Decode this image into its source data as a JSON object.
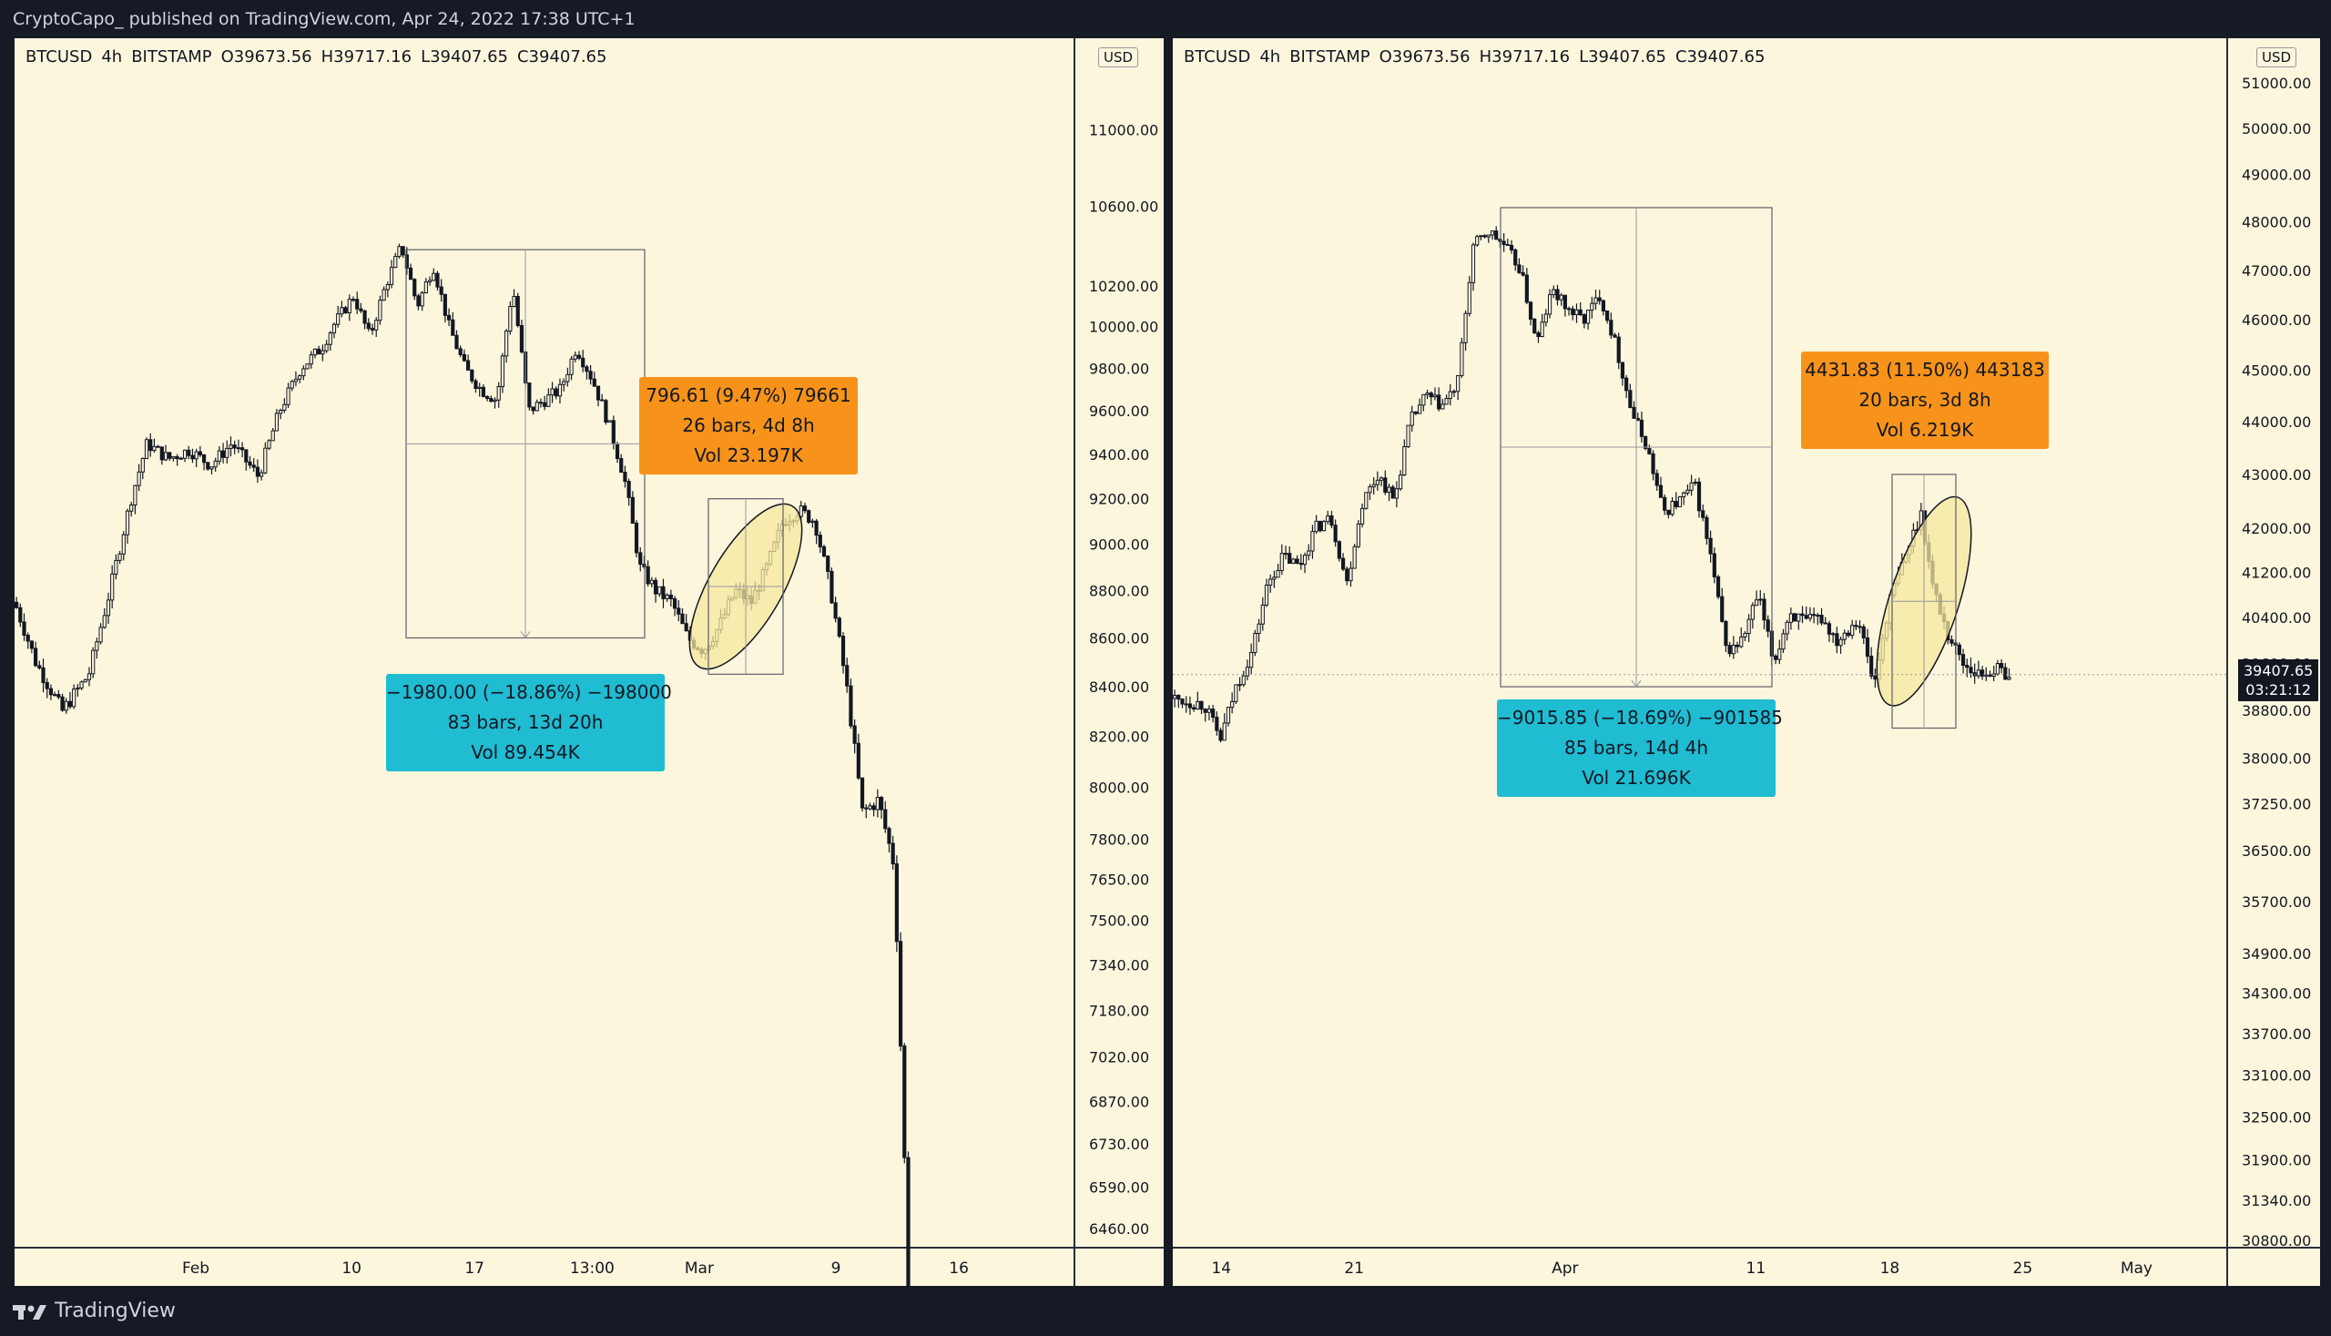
{
  "header": {
    "publisher_line": "CryptoCapo_  published on TradingView.com, Apr 24, 2022 17:38 UTC+1"
  },
  "footer": {
    "brand": "TradingView"
  },
  "colors": {
    "background": "#fcf6dd",
    "frame": "#161a25",
    "candle": "#131722",
    "orange_label": "#f7931a",
    "cyan_label": "#1fbcd2",
    "ellipse_fill": "#f5e79e"
  },
  "left_chart": {
    "symbol": "BTCUSD",
    "interval": "4h",
    "exchange": "BITSTAMP",
    "open": "O39673.56",
    "high": "H39717.16",
    "low": "L39407.65",
    "close": "C39407.65",
    "currency": "USD",
    "measure_orange": {
      "line1": "796.61 (9.47%) 79661",
      "line2": "26 bars, 4d 8h",
      "line3": "Vol 23.197K"
    },
    "measure_cyan": {
      "line1": "−1980.00 (−18.86%) −198000",
      "line2": "83 bars, 13d 20h",
      "line3": "Vol 89.454K"
    }
  },
  "right_chart": {
    "symbol": "BTCUSD",
    "interval": "4h",
    "exchange": "BITSTAMP",
    "open": "O39673.56",
    "high": "H39717.16",
    "low": "L39407.65",
    "close": "C39407.65",
    "currency": "USD",
    "last_price": "39407.65",
    "countdown": "03:21:12",
    "measure_orange": {
      "line1": "4431.83 (11.50%) 443183",
      "line2": "20 bars, 3d 8h",
      "line3": "Vol 6.219K"
    },
    "measure_cyan": {
      "line1": "−9015.85 (−18.69%) −901585",
      "line2": "85 bars, 14d 4h",
      "line3": "Vol 21.696K"
    }
  },
  "chart_data": [
    {
      "type": "candlestick",
      "series": [
        {
          "name": "BTCUSD"
        }
      ],
      "scale": "log",
      "ylim": [
        6400,
        11500
      ],
      "y_ticks": [
        "11000.00",
        "10600.00",
        "10200.00",
        "10000.00",
        "9800.00",
        "9600.00",
        "9400.00",
        "9200.00",
        "9000.00",
        "8800.00",
        "8600.00",
        "8400.00",
        "8200.00",
        "8000.00",
        "7800.00",
        "7650.00",
        "7500.00",
        "7340.00",
        "7180.00",
        "7020.00",
        "6870.00",
        "6730.00",
        "6590.00",
        "6460.00"
      ],
      "y_tick_values": [
        11000,
        10600,
        10200,
        10000,
        9800,
        9600,
        9400,
        9200,
        9000,
        8800,
        8600,
        8400,
        8200,
        8000,
        7800,
        7650,
        7500,
        7340,
        7180,
        7020,
        6870,
        6730,
        6590,
        6460
      ],
      "x_ticks": [
        "Feb",
        "10",
        "17",
        "13:00",
        "Mar",
        "9",
        "16"
      ],
      "x_tick_pos": [
        0.171,
        0.318,
        0.434,
        0.545,
        0.646,
        0.775,
        0.891
      ],
      "price_path": [
        [
          0.0,
          8750
        ],
        [
          0.02,
          8500
        ],
        [
          0.045,
          8300
        ],
        [
          0.07,
          8450
        ],
        [
          0.09,
          8800
        ],
        [
          0.11,
          9200
        ],
        [
          0.125,
          9450
        ],
        [
          0.145,
          9380
        ],
        [
          0.165,
          9420
        ],
        [
          0.185,
          9350
        ],
        [
          0.205,
          9450
        ],
        [
          0.23,
          9300
        ],
        [
          0.25,
          9600
        ],
        [
          0.27,
          9800
        ],
        [
          0.29,
          9900
        ],
        [
          0.3,
          10000
        ],
        [
          0.32,
          10150
        ],
        [
          0.335,
          9950
        ],
        [
          0.35,
          10200
        ],
        [
          0.365,
          10400
        ],
        [
          0.38,
          10100
        ],
        [
          0.395,
          10300
        ],
        [
          0.41,
          10000
        ],
        [
          0.425,
          9800
        ],
        [
          0.44,
          9700
        ],
        [
          0.455,
          9650
        ],
        [
          0.47,
          10200
        ],
        [
          0.485,
          9600
        ],
        [
          0.5,
          9650
        ],
        [
          0.515,
          9700
        ],
        [
          0.53,
          9900
        ],
        [
          0.545,
          9750
        ],
        [
          0.56,
          9550
        ],
        [
          0.575,
          9300
        ],
        [
          0.59,
          8900
        ],
        [
          0.605,
          8800
        ],
        [
          0.62,
          8750
        ],
        [
          0.635,
          8600
        ],
        [
          0.65,
          8550
        ],
        [
          0.665,
          8650
        ],
        [
          0.68,
          8800
        ],
        [
          0.695,
          8750
        ],
        [
          0.71,
          8900
        ],
        [
          0.725,
          9100
        ],
        [
          0.74,
          9150
        ],
        [
          0.755,
          9100
        ],
        [
          0.77,
          8800
        ],
        [
          0.785,
          8400
        ],
        [
          0.8,
          7900
        ],
        [
          0.815,
          7950
        ],
        [
          0.83,
          7700
        ],
        [
          0.845,
          6100
        ]
      ],
      "measure_down": {
        "from": 10380,
        "to": 8600
      },
      "measure_up": {
        "from": 8450,
        "to": 9200
      }
    },
    {
      "type": "candlestick",
      "series": [
        {
          "name": "BTCUSD"
        }
      ],
      "scale": "log",
      "ylim": [
        30700,
        52000
      ],
      "y_ticks": [
        "51000.00",
        "50000.00",
        "49000.00",
        "48000.00",
        "47000.00",
        "46000.00",
        "45000.00",
        "44000.00",
        "43000.00",
        "42000.00",
        "41200.00",
        "40400.00",
        "39600.00",
        "38800.00",
        "38000.00",
        "37250.00",
        "36500.00",
        "35700.00",
        "34900.00",
        "34300.00",
        "33700.00",
        "33100.00",
        "32500.00",
        "31900.00",
        "31340.00",
        "30800.00"
      ],
      "y_tick_values": [
        51000,
        50000,
        49000,
        48000,
        47000,
        46000,
        45000,
        44000,
        43000,
        42000,
        41200,
        40400,
        39600,
        38800,
        38000,
        37250,
        36500,
        35700,
        34900,
        34300,
        33700,
        33100,
        32500,
        31900,
        31340,
        30800
      ],
      "x_ticks": [
        "14",
        "21",
        "Apr",
        "11",
        "18",
        "25",
        "May"
      ],
      "x_tick_pos": [
        0.046,
        0.172,
        0.372,
        0.553,
        0.68,
        0.806,
        0.914
      ],
      "price_path": [
        [
          0.0,
          39000
        ],
        [
          0.03,
          38900
        ],
        [
          0.045,
          38300
        ],
        [
          0.06,
          39200
        ],
        [
          0.075,
          39800
        ],
        [
          0.09,
          41000
        ],
        [
          0.105,
          41500
        ],
        [
          0.12,
          41300
        ],
        [
          0.135,
          42000
        ],
        [
          0.15,
          42200
        ],
        [
          0.165,
          41000
        ],
        [
          0.18,
          42500
        ],
        [
          0.195,
          43000
        ],
        [
          0.21,
          42500
        ],
        [
          0.225,
          44000
        ],
        [
          0.24,
          44500
        ],
        [
          0.255,
          44300
        ],
        [
          0.27,
          44700
        ],
        [
          0.285,
          47500
        ],
        [
          0.3,
          47800
        ],
        [
          0.315,
          47500
        ],
        [
          0.33,
          47000
        ],
        [
          0.345,
          45500
        ],
        [
          0.36,
          46600
        ],
        [
          0.375,
          46200
        ],
        [
          0.39,
          46000
        ],
        [
          0.405,
          46500
        ],
        [
          0.42,
          45500
        ],
        [
          0.435,
          44200
        ],
        [
          0.45,
          43500
        ],
        [
          0.465,
          42300
        ],
        [
          0.48,
          42500
        ],
        [
          0.495,
          42800
        ],
        [
          0.51,
          41500
        ],
        [
          0.525,
          39800
        ],
        [
          0.54,
          40000
        ],
        [
          0.555,
          40800
        ],
        [
          0.57,
          39600
        ],
        [
          0.585,
          40500
        ],
        [
          0.6,
          40300
        ],
        [
          0.615,
          40400
        ],
        [
          0.63,
          40000
        ],
        [
          0.65,
          40400
        ],
        [
          0.665,
          39200
        ],
        [
          0.68,
          40700
        ],
        [
          0.695,
          41500
        ],
        [
          0.71,
          42300
        ],
        [
          0.72,
          41000
        ],
        [
          0.735,
          40100
        ],
        [
          0.75,
          39600
        ],
        [
          0.765,
          39400
        ],
        [
          0.78,
          39500
        ],
        [
          0.795,
          39407.65
        ]
      ],
      "last_price": 39407.65,
      "measure_down": {
        "from": 48300,
        "to": 39200
      },
      "measure_up": {
        "from": 38500,
        "to": 43000
      }
    }
  ]
}
